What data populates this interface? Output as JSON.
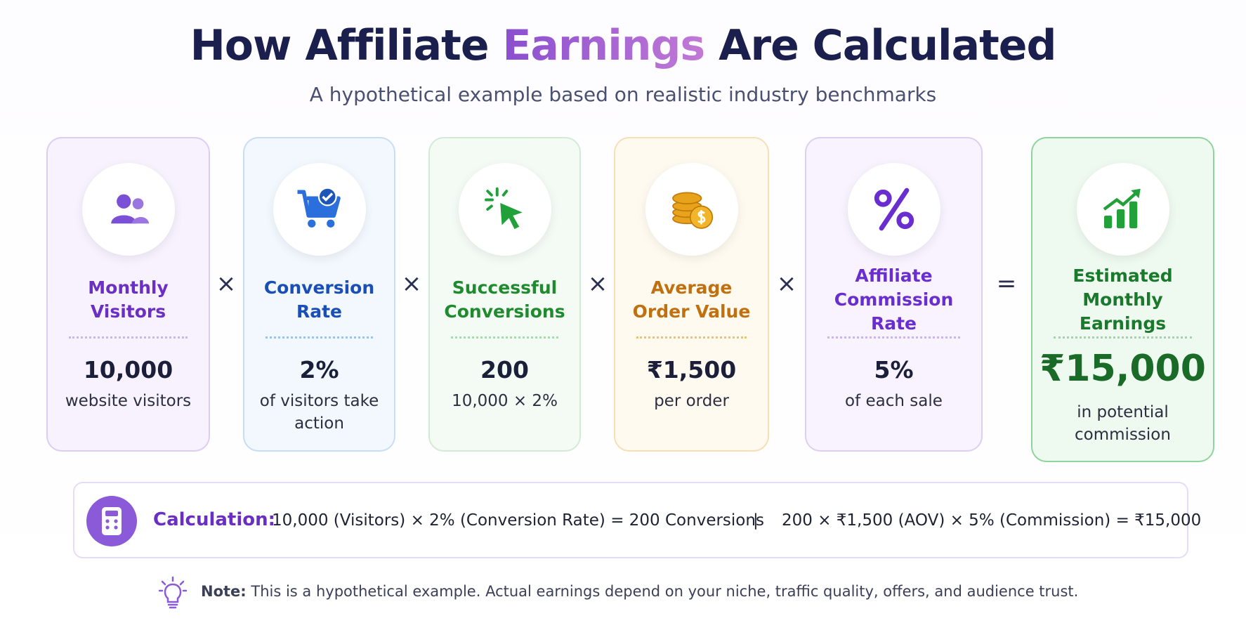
{
  "header": {
    "title_before": "How Affiliate",
    "title_highlight": "Earnings",
    "title_after": "Are Calculated",
    "subtitle": "A hypothetical example based on realistic industry benchmarks"
  },
  "cards": [
    {
      "label": "Monthly Visitors",
      "value": "10,000",
      "caption": "website visitors"
    },
    {
      "label": "Conversion Rate",
      "value": "2%",
      "caption": "of visitors take action"
    },
    {
      "label": "Successful Conversions",
      "value": "200",
      "caption": "10,000 × 2%"
    },
    {
      "label": "Average Order Value",
      "value": "₹1,500",
      "caption": "per order"
    },
    {
      "label": "Affiliate Commission Rate",
      "value": "5%",
      "caption": "of each sale"
    },
    {
      "label": "Estimated Monthly Earnings",
      "value": "₹15,000",
      "caption": "in potential commission"
    }
  ],
  "operators": [
    "×",
    "×",
    "×",
    "×",
    "="
  ],
  "calculation": {
    "label": "Calculation:",
    "step1": "10,000 (Visitors) × 2% (Conversion Rate) = 200 Conversions",
    "separator": "|",
    "step2": "200 × ₹1,500 (AOV) × 5% (Commission) = ₹15,000"
  },
  "note": {
    "label": "Note:",
    "text": "This is a hypothetical example. Actual earnings depend on your niche, traffic quality, offers, and audience trust."
  }
}
